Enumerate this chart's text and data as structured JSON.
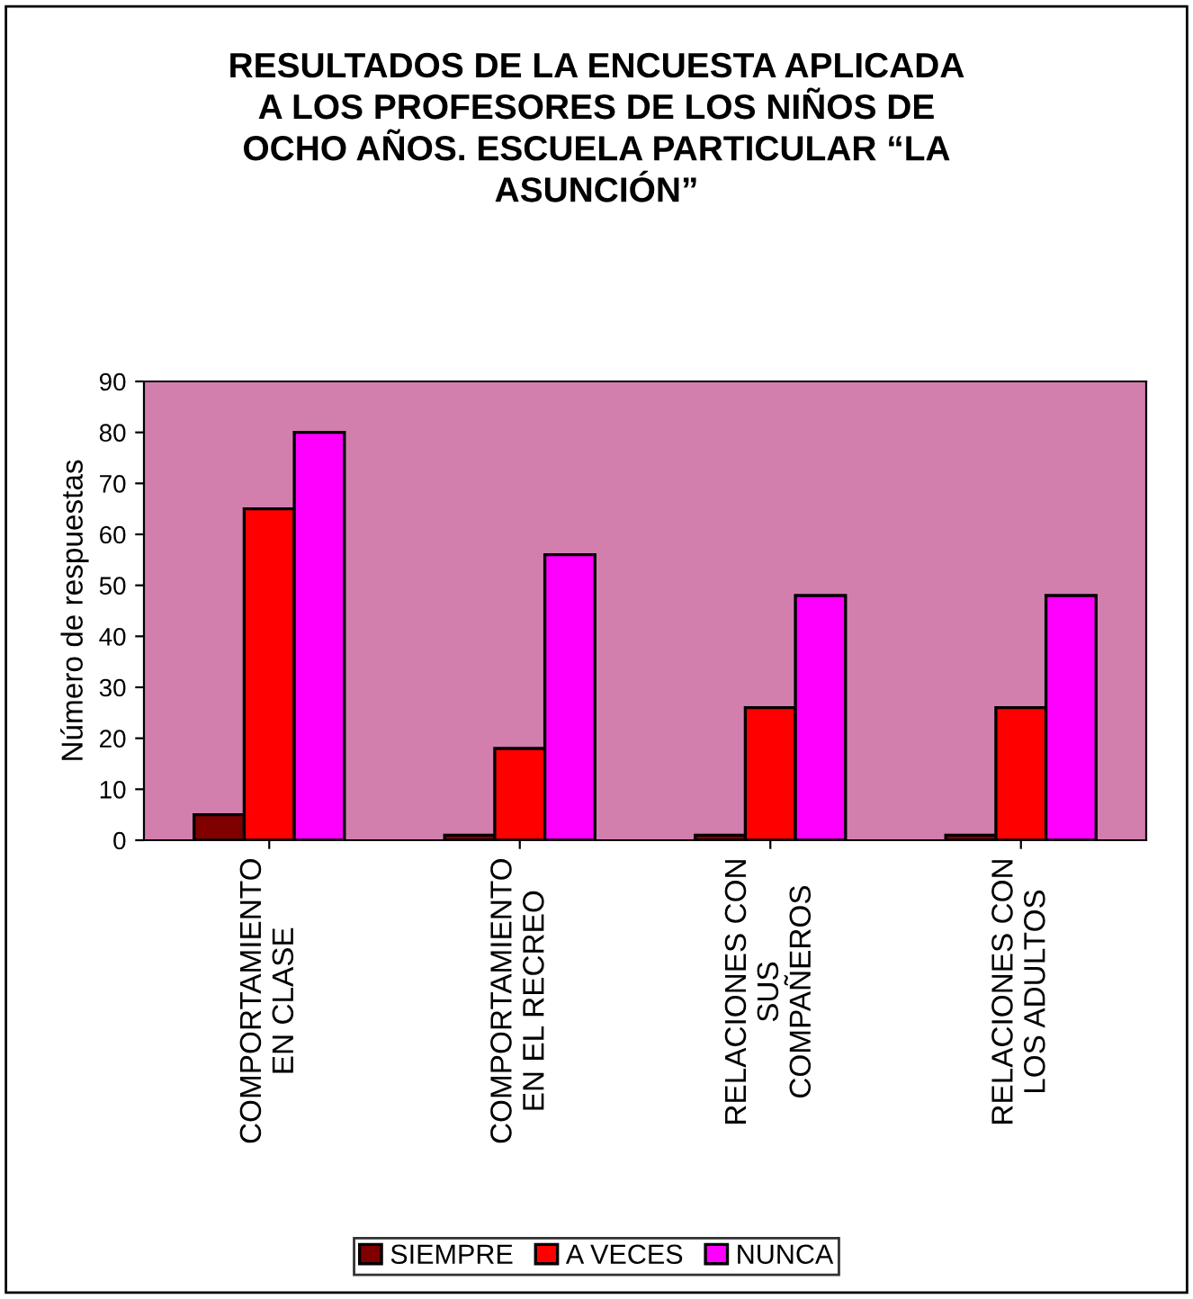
{
  "chart_data": {
    "type": "bar",
    "title": "RESULTADOS DE LA ENCUESTA APLICADA\nA LOS PROFESORES DE LOS NIÑOS DE\nOCHO AÑOS. ESCUELA PARTICULAR “LA\nASUNCIÓN”",
    "ylabel": "Número de respuestas",
    "categories": [
      "COMPORTAMIENTO\nEN CLASE",
      "COMPORTAMIENTO\nEN EL RECREO",
      "RELACIONES CON\nSUS\nCOMPAÑEROS",
      "RELACIONES CON\nLOS ADULTOS"
    ],
    "series": [
      {
        "name": "SIEMPRE",
        "color": "#800000",
        "values": [
          5,
          1,
          1,
          1
        ]
      },
      {
        "name": "A VECES",
        "color": "#ff0000",
        "values": [
          65,
          18,
          26,
          26
        ]
      },
      {
        "name": "NUNCA",
        "color": "#ff00ff",
        "values": [
          80,
          56,
          48,
          48
        ]
      }
    ],
    "ylim": [
      0,
      90
    ],
    "yticks": [
      0,
      10,
      20,
      30,
      40,
      50,
      60,
      70,
      80,
      90
    ],
    "grid": false,
    "legend": "bottom"
  }
}
